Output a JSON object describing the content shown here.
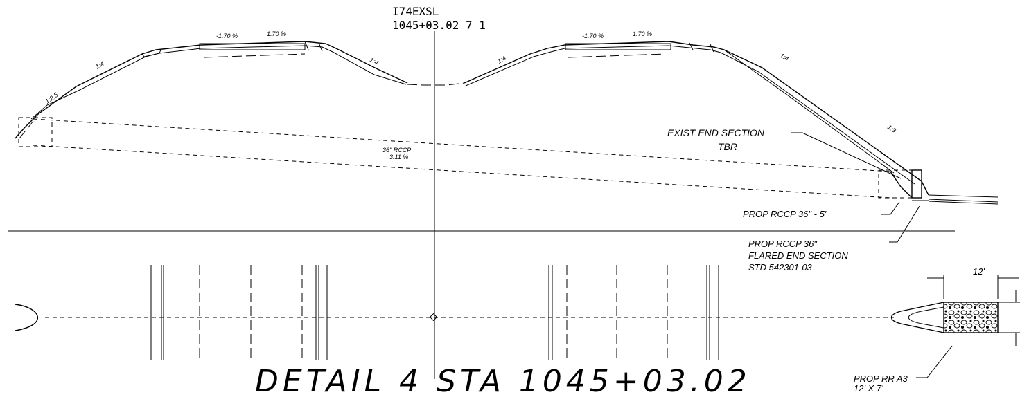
{
  "header": {
    "alignment": "I74EXSL",
    "station": "1045+03.02 7 1"
  },
  "slopes": {
    "left_1": "1:2.5",
    "left_2": "1:4",
    "left_3": "1:4",
    "right_1": "1:4",
    "right_2": "1:4",
    "right_3": "1:3"
  },
  "cross_slopes": {
    "left_a": "-1.70 %",
    "left_b": "1.70 %",
    "right_a": "-1.70 %",
    "right_b": "1.70 %"
  },
  "pipe": {
    "size": "36\" RCCP",
    "grade": "3.11 %"
  },
  "callouts": {
    "exist_end_1": "EXIST END SECTION",
    "exist_end_2": "TBR",
    "prop_rccp": "PROP RCCP 36\" - 5'",
    "flared_1": "PROP RCCP 36\"",
    "flared_2": "FLARED END SECTION",
    "flared_3": "STD 542301-03",
    "riprap_1": "PROP RR A3",
    "riprap_2": "12' X 7'",
    "dim_width": "12'"
  },
  "title": "DETAIL 4 STA 1045+03.02"
}
